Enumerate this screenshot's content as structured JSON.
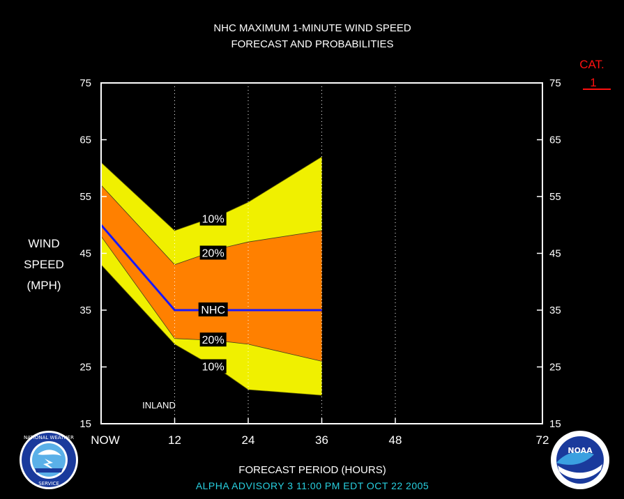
{
  "chart_data": {
    "type": "area",
    "title": "NHC MAXIMUM 1-MINUTE WIND SPEED",
    "subtitle": "FORECAST AND PROBABILITIES",
    "ylabel": [
      "WIND",
      "SPEED",
      "(MPH)"
    ],
    "xlabel": "FORECAST PERIOD (HOURS)",
    "xlim": [
      0,
      72
    ],
    "ylim": [
      15,
      75
    ],
    "x_ticks": [
      0,
      12,
      24,
      36,
      48,
      72
    ],
    "x_tick_labels": [
      "NOW",
      "12",
      "24",
      "36",
      "48",
      "72"
    ],
    "y_ticks": [
      15,
      25,
      35,
      45,
      55,
      65,
      75
    ],
    "gridlines_x": [
      12,
      24,
      36,
      48
    ],
    "bands": [
      {
        "name": "10%",
        "color": "#f0f000",
        "x": [
          0,
          12,
          16,
          20,
          24,
          36
        ],
        "upper": [
          61,
          49,
          50.5,
          52,
          54,
          62
        ],
        "lower": [
          43,
          29,
          26.5,
          24,
          21,
          20
        ]
      },
      {
        "name": "20%",
        "color": "#ff8000",
        "x": [
          0,
          12,
          16,
          20,
          24,
          36
        ],
        "upper": [
          57,
          43,
          44.5,
          46,
          47,
          49
        ],
        "lower": [
          48,
          30,
          29.8,
          29.5,
          29,
          26
        ]
      }
    ],
    "series": [
      {
        "name": "NHC",
        "color": "#1818ff",
        "x": [
          0,
          12,
          24,
          36
        ],
        "values": [
          50,
          35,
          35,
          35
        ]
      }
    ],
    "band_labels": [
      {
        "text": "10%",
        "x": 16,
        "y": 51
      },
      {
        "text": "20%",
        "x": 16,
        "y": 45
      },
      {
        "text": "NHC",
        "x": 16,
        "y": 35
      },
      {
        "text": "20%",
        "x": 16,
        "y": 29.7
      },
      {
        "text": "10%",
        "x": 16,
        "y": 25
      }
    ],
    "annotations": [
      {
        "text": "INLAND",
        "x": 0,
        "y": 15
      }
    ],
    "category": {
      "label": "CAT.",
      "value": "1",
      "color": "#ff1010"
    }
  },
  "advisory": "ALPHA    ADVISORY  3  11:00  PM  EDT  OCT  22  2005",
  "logos": {
    "left": {
      "icon": "nws-logo",
      "text": "NATIONAL WEATHER SERVICE"
    },
    "right": {
      "icon": "noaa-logo",
      "text": "NOAA"
    }
  }
}
